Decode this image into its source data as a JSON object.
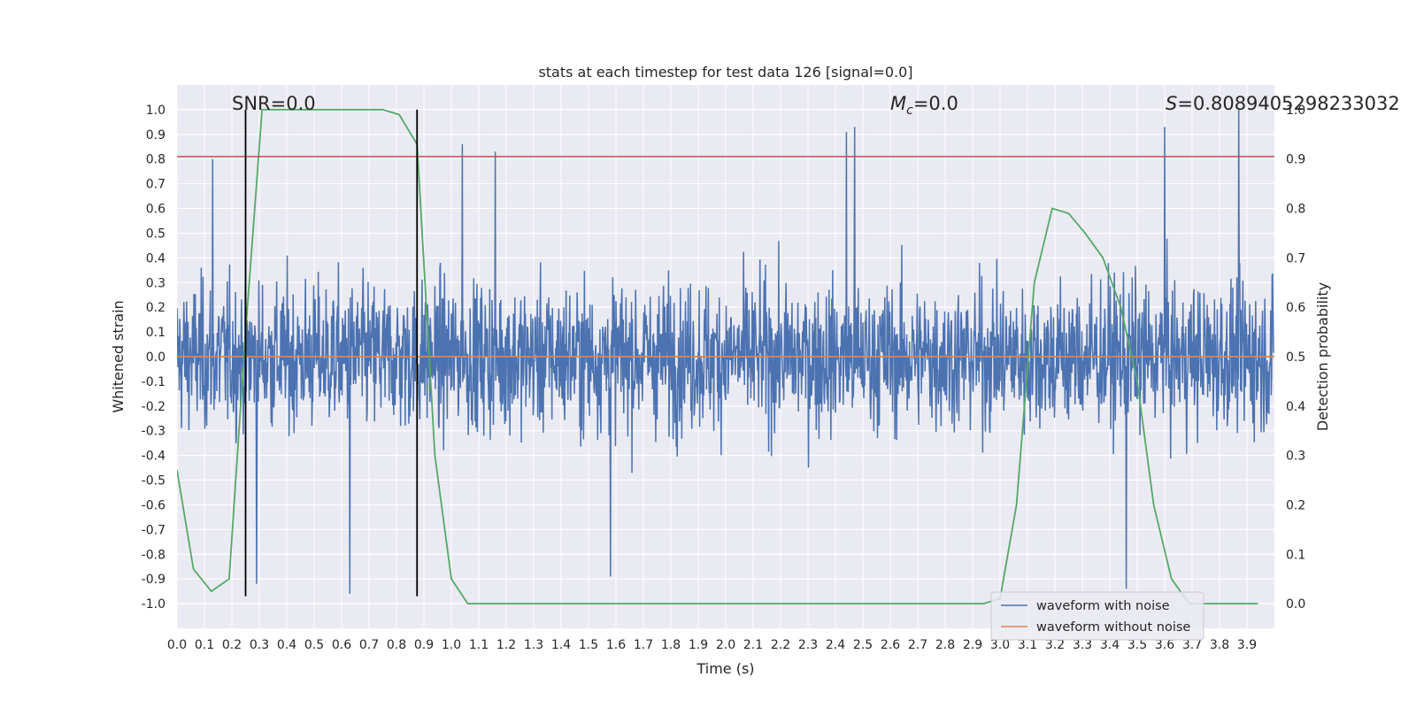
{
  "chart_data": {
    "type": "line",
    "title": "stats at each timestep for test data 126 [signal=0.0]",
    "xlabel": "Time (s)",
    "ylabel": "Whitened strain",
    "y2label": "Detection probability",
    "xlim": [
      0.0,
      4.0
    ],
    "ylim": [
      -1.1,
      1.1
    ],
    "y2lim": [
      -0.05,
      1.05
    ],
    "xticks": [
      "0.0",
      "0.1",
      "0.2",
      "0.3",
      "0.4",
      "0.5",
      "0.6",
      "0.7",
      "0.8",
      "0.9",
      "1.0",
      "1.1",
      "1.2",
      "1.3",
      "1.4",
      "1.5",
      "1.6",
      "1.7",
      "1.8",
      "1.9",
      "2.0",
      "2.1",
      "2.2",
      "2.3",
      "2.4",
      "2.5",
      "2.6",
      "2.7",
      "2.8",
      "2.9",
      "3.0",
      "3.1",
      "3.2",
      "3.3",
      "3.4",
      "3.5",
      "3.6",
      "3.7",
      "3.8",
      "3.9"
    ],
    "yticks": [
      "-1.0",
      "-0.9",
      "-0.8",
      "-0.7",
      "-0.6",
      "-0.5",
      "-0.4",
      "-0.3",
      "-0.2",
      "-0.1",
      "0.0",
      "0.1",
      "0.2",
      "0.3",
      "0.4",
      "0.5",
      "0.6",
      "0.7",
      "0.8",
      "0.9",
      "1.0"
    ],
    "y2ticks": [
      "0.0",
      "0.1",
      "0.2",
      "0.3",
      "0.4",
      "0.5",
      "0.6",
      "0.7",
      "0.8",
      "0.9",
      "1.0"
    ],
    "grid": true,
    "legend_position": "lower-right",
    "annotations": {
      "snr": "SNR=0.0",
      "mc_symbol": "M",
      "mc_sub": "c",
      "mc_value": "=0.0",
      "s_symbol": "S",
      "s_value": "=0.8089405298233032"
    },
    "series": [
      {
        "name": "waveform with noise",
        "color": "#4c72b0",
        "axis": "left",
        "kind": "noise",
        "sample_count": 2400,
        "envelope_ymin": -0.95,
        "envelope_ymax": 1.0,
        "peaks": [
          [
            0.13,
            0.8
          ],
          [
            1.04,
            0.86
          ],
          [
            1.16,
            0.83
          ],
          [
            2.44,
            0.91
          ],
          [
            2.47,
            0.93
          ],
          [
            3.6,
            0.93
          ],
          [
            3.87,
            1.0
          ],
          [
            0.63,
            -0.96
          ],
          [
            1.58,
            -0.89
          ],
          [
            3.46,
            -0.94
          ],
          [
            0.29,
            -0.92
          ]
        ]
      },
      {
        "name": "waveform without noise",
        "color": "#dd8452",
        "axis": "left",
        "x": [
          0.0,
          4.0
        ],
        "y": [
          0.0,
          0.0
        ]
      },
      {
        "color": "#55a868",
        "axis": "right",
        "x": [
          0.0,
          0.06,
          0.125,
          0.19,
          0.25,
          0.31,
          0.375,
          0.44,
          0.5,
          0.56,
          0.625,
          0.69,
          0.75,
          0.81,
          0.875,
          0.94,
          1.0,
          1.06,
          1.125,
          1.19,
          1.25,
          1.5,
          1.75,
          2.0,
          2.25,
          2.5,
          2.75,
          2.94,
          3.0,
          3.06,
          3.125,
          3.19,
          3.25,
          3.31,
          3.375,
          3.44,
          3.5,
          3.56,
          3.625,
          3.69,
          3.75,
          3.875,
          3.94
        ],
        "y": [
          0.27,
          0.07,
          0.025,
          0.05,
          0.55,
          1.0,
          1.0,
          1.0,
          1.0,
          1.0,
          1.0,
          1.0,
          1.0,
          0.99,
          0.93,
          0.3,
          0.05,
          0.0,
          0.0,
          0.0,
          0.0,
          0.0,
          0.0,
          0.0,
          0.0,
          0.0,
          0.0,
          0.0,
          0.01,
          0.2,
          0.65,
          0.8,
          0.79,
          0.75,
          0.7,
          0.6,
          0.45,
          0.2,
          0.05,
          0.0,
          0.0,
          0.0,
          0.0
        ]
      }
    ],
    "hlines": [
      {
        "axis": "left",
        "y": 0.81,
        "color": "#c44e52"
      }
    ],
    "vlines": [
      {
        "x": 0.25,
        "ymin": -0.97,
        "ymax": 1.0,
        "color": "#000000"
      },
      {
        "x": 0.875,
        "ymin": -0.97,
        "ymax": 1.0,
        "color": "#000000"
      }
    ]
  }
}
